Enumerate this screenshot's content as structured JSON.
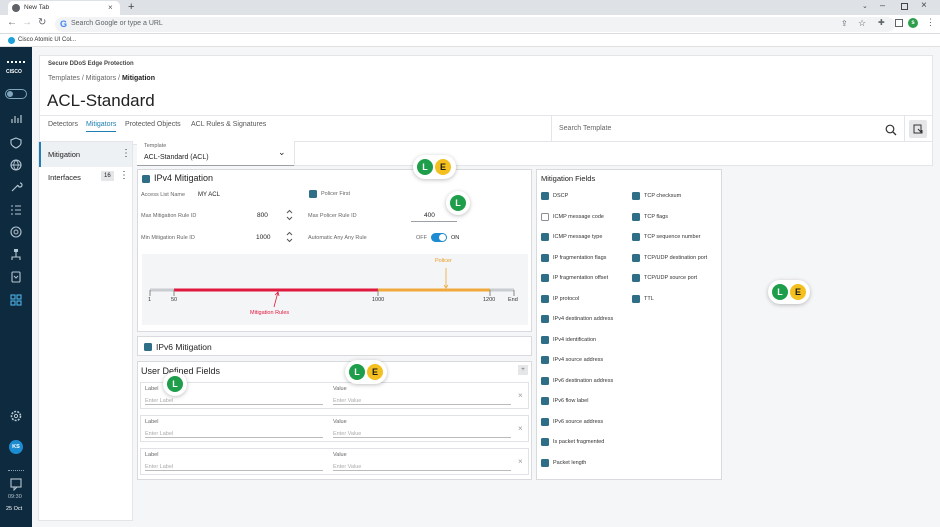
{
  "browser": {
    "tab_title": "New Tab",
    "omnibox_placeholder": "Search Google or type a URL",
    "bookmark": "Cisco Atomic UI Col...",
    "profile_initial": "s"
  },
  "nav": {
    "brand": "CISCO",
    "user_initials": "KS",
    "time": "09:30",
    "date": "25 Oct"
  },
  "header": {
    "product": "Secure DDoS Edge Protection",
    "breadcrumb": [
      "Templates",
      "Mitigators",
      "Mitigation"
    ],
    "title": "ACL-Standard",
    "tabs": [
      "Detectors",
      "Mitigators",
      "Protected Objects",
      "ACL Rules & Signatures"
    ],
    "active_tab": "Mitigators",
    "search_placeholder": "Search Template"
  },
  "sidebar": {
    "items": [
      {
        "label": "Mitigation"
      },
      {
        "label": "Interfaces",
        "count": "16"
      }
    ]
  },
  "template": {
    "label": "Template",
    "value": "ACL-Standard (ACL)"
  },
  "ipv4": {
    "title": "IPv4 Mitigation",
    "access_list_label": "Access List Name",
    "access_list_value": "MY ACL",
    "policer_first": "Policer First",
    "max_rule_label": "Max Mitigation Rule ID",
    "max_rule_value": "800",
    "max_policer_label": "Max Policer Rule ID",
    "max_policer_value": "400",
    "min_rule_label": "Min Mitigation Rule ID",
    "min_rule_value": "1000",
    "auto_any_label": "Automatic Any Any Rule",
    "toggle_off": "OFF",
    "toggle_on": "ON",
    "range": {
      "policer_label": "Policer",
      "mitigation_label": "Mitigation Rules",
      "ticks": [
        "1",
        "50",
        "1000",
        "1200",
        "End"
      ],
      "colors": {
        "mitigation": "#e0173f",
        "policer": "#f0a93a",
        "track": "#c9ccd0"
      }
    }
  },
  "ipv6": {
    "title": "IPv6 Mitigation"
  },
  "udf": {
    "title": "User Defined Fields",
    "rows": [
      {
        "label": "Label",
        "label_ph": "Enter Label",
        "value": "Value",
        "value_ph": "Enter Value"
      },
      {
        "label": "Label",
        "label_ph": "Enter Label",
        "value": "Value",
        "value_ph": "Enter Value"
      },
      {
        "label": "Label",
        "label_ph": "Enter Label",
        "value": "Value",
        "value_ph": "Enter Value"
      }
    ]
  },
  "fields": {
    "title": "Mitigation Fields",
    "col1": [
      {
        "label": "DSCP",
        "checked": true
      },
      {
        "label": "ICMP message code",
        "checked": false
      },
      {
        "label": "ICMP message type",
        "checked": true
      },
      {
        "label": "IP fragmentation flags",
        "checked": true
      },
      {
        "label": "IP fragmentation offset",
        "checked": true
      },
      {
        "label": "IP protocol",
        "checked": true
      },
      {
        "label": "IPv4 destination address",
        "checked": true
      },
      {
        "label": "IPv4 identification",
        "checked": true
      },
      {
        "label": "IPv4 source address",
        "checked": true
      },
      {
        "label": "IPv6 destination address",
        "checked": true
      },
      {
        "label": "IPv6 flow label",
        "checked": true
      },
      {
        "label": "IPv6 source address",
        "checked": true
      },
      {
        "label": "Is packet fragmented",
        "checked": true
      },
      {
        "label": "Packet length",
        "checked": true
      }
    ],
    "col2": [
      {
        "label": "TCP checksum",
        "checked": true
      },
      {
        "label": "TCP flags",
        "checked": true
      },
      {
        "label": "TCP sequence number",
        "checked": true
      },
      {
        "label": "TCP/UDP destination port",
        "checked": true
      },
      {
        "label": "TCP/UDP source port",
        "checked": true
      },
      {
        "label": "TTL",
        "checked": true
      }
    ]
  },
  "presence": {
    "l": "L",
    "e": "E"
  },
  "colors": {
    "accent": "#1f7fb3",
    "nav_bg": "#0d2a3f",
    "toggle": "#1d8bd1"
  }
}
